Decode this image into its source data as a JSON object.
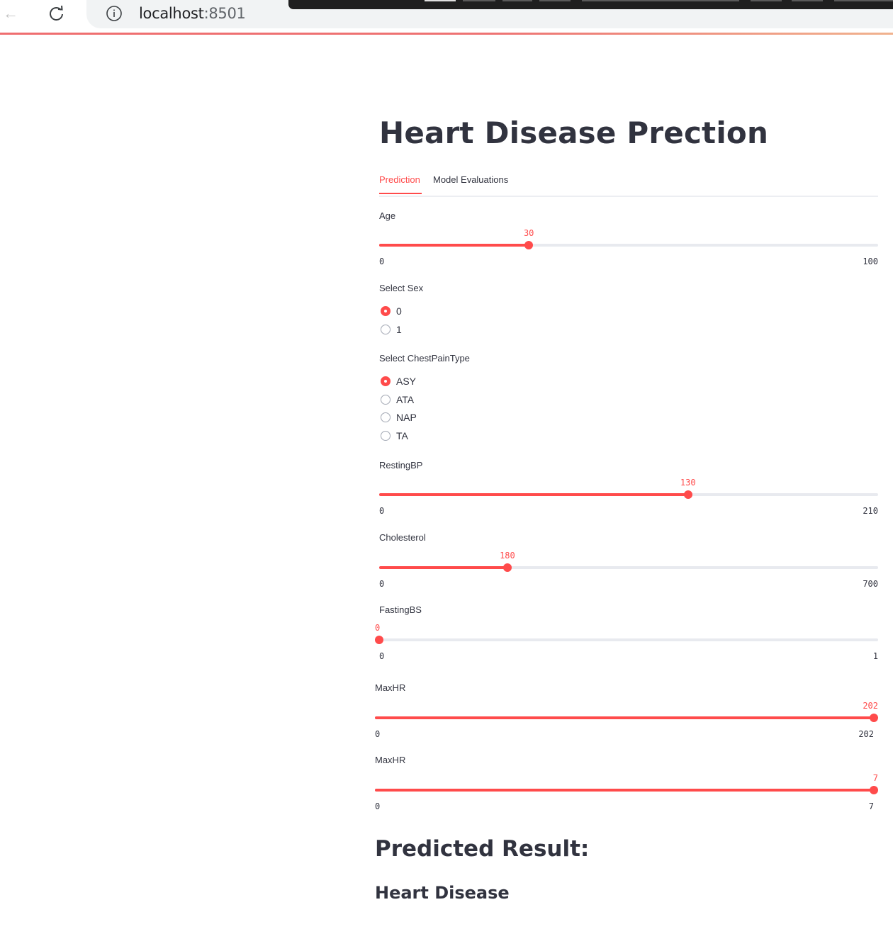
{
  "browser": {
    "url_host": "localhost",
    "url_port": ":8501"
  },
  "app": {
    "title": "Heart Disease Prection",
    "tabs": [
      {
        "label": "Prediction",
        "active": true
      },
      {
        "label": "Model Evaluations",
        "active": false
      }
    ],
    "accent_color": "#ff4b4b"
  },
  "sliders": {
    "age": {
      "label": "Age",
      "value": "30",
      "min": "0",
      "max": "100",
      "level": 0.3
    },
    "restingbp": {
      "label": "RestingBP",
      "value": "130",
      "min": "0",
      "max": "210",
      "level": 0.619
    },
    "cholesterol": {
      "label": "Cholesterol",
      "value": "180",
      "min": "0",
      "max": "700",
      "level": 0.257
    },
    "fastingbs": {
      "label": "FastingBS",
      "value": "0",
      "min": "0",
      "max": "1",
      "level": 0
    },
    "maxhr": {
      "label": "MaxHR",
      "value": "202",
      "min": "0",
      "max": "202",
      "level": 1
    },
    "maxhr2": {
      "label": "MaxHR",
      "value": "7",
      "min": "0",
      "max": "7",
      "level": 1
    }
  },
  "radios": {
    "sex": {
      "label": "Select Sex",
      "options": [
        "0",
        "1"
      ],
      "selected": 0
    },
    "chestpain": {
      "label": "Select ChestPainType",
      "options": [
        "ASY",
        "ATA",
        "NAP",
        "TA"
      ],
      "selected": 0
    }
  },
  "result": {
    "heading": "Predicted Result:",
    "value": "Heart Disease"
  }
}
